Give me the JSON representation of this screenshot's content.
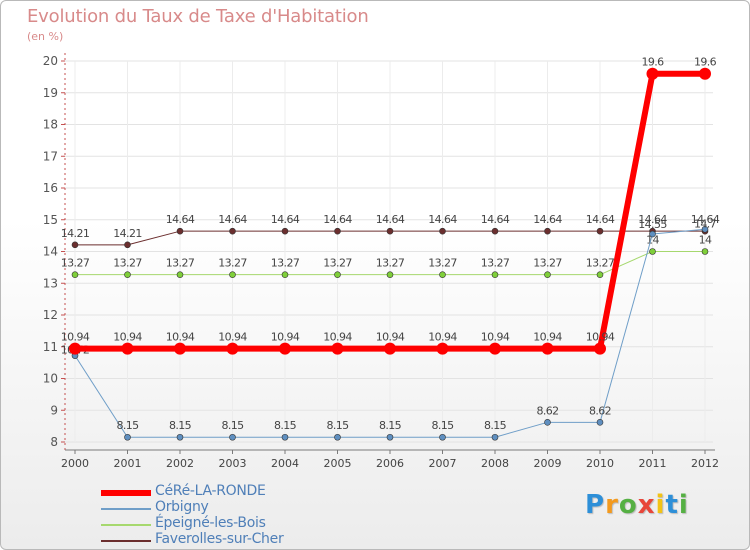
{
  "title": "Evolution du Taux de Taxe d'Habitation",
  "subtitle": "(en %)",
  "brand": "Proxiti",
  "colors": {
    "title": "#d88a8a",
    "axis": "#c45050",
    "legend_text": "#4f7fb8",
    "label_text": "#444444"
  },
  "chart_data": {
    "type": "line",
    "title": "Evolution du Taux de Taxe d'Habitation",
    "ylabel": "(en %)",
    "xlabel": "",
    "ylim": [
      8,
      20
    ],
    "yticks": [
      "8",
      "9",
      "10",
      "11",
      "12",
      "13",
      "14",
      "15",
      "16",
      "17",
      "18",
      "19",
      "20"
    ],
    "categories": [
      "2000",
      "2001",
      "2002",
      "2003",
      "2004",
      "2005",
      "2006",
      "2007",
      "2008",
      "2009",
      "2010",
      "2011",
      "2012"
    ],
    "series": [
      {
        "name": "Faverolles-sur-Cher",
        "color": "#6b2e2e",
        "width": 1,
        "values": [
          14.21,
          14.21,
          14.64,
          14.64,
          14.64,
          14.64,
          14.64,
          14.64,
          14.64,
          14.64,
          14.64,
          14.64,
          14.64
        ],
        "labels": [
          "14.21",
          "14.21",
          "14.64",
          "14.64",
          "14.64",
          "14.64",
          "14.64",
          "14.64",
          "14.64",
          "14.64",
          "14.64",
          "14.64",
          "14.64"
        ]
      },
      {
        "name": "Épeigné-les-Bois",
        "color": "#a6d86e",
        "dot_color": "#7fcf3a",
        "width": 1,
        "values": [
          13.27,
          13.27,
          13.27,
          13.27,
          13.27,
          13.27,
          13.27,
          13.27,
          13.27,
          13.27,
          13.27,
          14,
          14
        ],
        "labels": [
          "13.27",
          "13.27",
          "13.27",
          "13.27",
          "13.27",
          "13.27",
          "13.27",
          "13.27",
          "13.27",
          "13.27",
          "13.27",
          "14",
          "14"
        ]
      },
      {
        "name": "Orbigny",
        "color": "#6f9ec8",
        "dot_color": "#5f8fc0",
        "width": 1,
        "values": [
          10.72,
          8.15,
          8.15,
          8.15,
          8.15,
          8.15,
          8.15,
          8.15,
          8.15,
          8.62,
          8.62,
          14.55,
          14.7
        ],
        "labels": [
          "10.72",
          "8.15",
          "8.15",
          "8.15",
          "8.15",
          "8.15",
          "8.15",
          "8.15",
          "8.15",
          "8.62",
          "8.62",
          "14.55",
          "14.7"
        ]
      },
      {
        "name": "CéRé-LA-RONDE",
        "color": "#ff0000",
        "width": 6,
        "values": [
          10.94,
          10.94,
          10.94,
          10.94,
          10.94,
          10.94,
          10.94,
          10.94,
          10.94,
          10.94,
          10.94,
          19.6,
          19.6
        ],
        "labels": [
          "10.94",
          "10.94",
          "10.94",
          "10.94",
          "10.94",
          "10.94",
          "10.94",
          "10.94",
          "10.94",
          "10.94",
          "10.94",
          "19.6",
          "19.6"
        ]
      }
    ],
    "legend": [
      "CéRé-LA-RONDE",
      "Orbigny",
      "Épeigné-les-Bois",
      "Faverolles-sur-Cher"
    ],
    "legend_position": "bottom-left"
  }
}
